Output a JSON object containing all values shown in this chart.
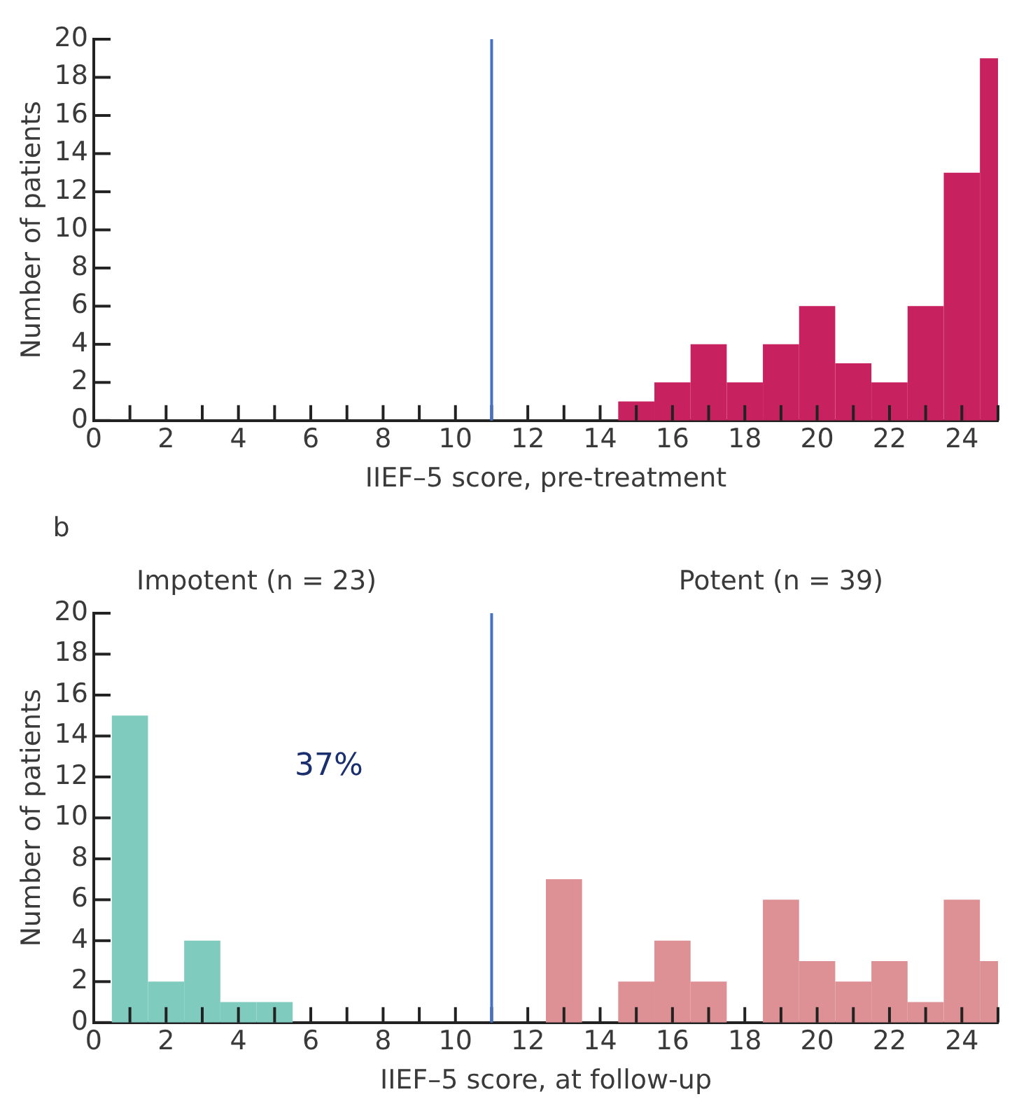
{
  "chart_data": [
    {
      "type": "histogram",
      "xlabel": "IIEF–5 score, pre-treatment",
      "ylabel": "Number of patients",
      "bins": [
        14.5,
        15.5,
        16.5,
        17.5,
        18.5,
        19.5,
        20.5,
        21.5,
        22.5,
        23.5,
        24.5,
        25
      ],
      "values": [
        1,
        2,
        4,
        2,
        4,
        6,
        3,
        2,
        6,
        13,
        19
      ],
      "color": "#c8215f",
      "xlim": [
        0,
        25
      ],
      "xticks": [
        0,
        {
          "value": 1,
          "label": null
        },
        2,
        {
          "value": 3,
          "label": null
        },
        4,
        {
          "value": 5,
          "label": null
        },
        6,
        {
          "value": 7,
          "label": null
        },
        8,
        {
          "value": 9,
          "label": null
        },
        10,
        {
          "value": 11,
          "label": null
        },
        12,
        {
          "value": 13,
          "label": null
        },
        14,
        {
          "value": 15,
          "label": null
        },
        16,
        {
          "value": 17,
          "label": null
        },
        18,
        {
          "value": 19,
          "label": null
        },
        20,
        {
          "value": 21,
          "label": null
        },
        22,
        {
          "value": 23,
          "label": null
        },
        24,
        {
          "value": 25,
          "label": null
        }
      ],
      "ylim": [
        0,
        20
      ],
      "yticks": [
        0,
        2,
        4,
        6,
        8,
        10,
        12,
        14,
        16,
        18,
        20
      ],
      "grid": false,
      "ref_lines": [
        {
          "axis": "x",
          "value": 11,
          "color": "#4472c4"
        }
      ]
    },
    {
      "type": "histogram",
      "xlabel": "IIEF–5 score, at follow-up",
      "ylabel": "Number of patients",
      "bins": [
        0.5,
        1.5,
        2.5,
        3.5,
        4.5,
        5.5,
        12.5,
        13.5,
        14.5,
        15.5,
        16.5,
        17.5,
        18.5,
        19.5,
        20.5,
        21.5,
        22.5,
        23.5,
        24.5,
        25
      ],
      "series": [
        {
          "color": "#7fccbf",
          "values": [
            15,
            2,
            4,
            1,
            1,
            0,
            null,
            null,
            null,
            null,
            null,
            null,
            null,
            null,
            null,
            null,
            null,
            null,
            null
          ]
        },
        {
          "color": "#de9194",
          "values": [
            null,
            null,
            null,
            null,
            null,
            null,
            7,
            0,
            2,
            4,
            2,
            0,
            6,
            3,
            2,
            3,
            1,
            6,
            3
          ]
        }
      ],
      "xlim": [
        0,
        25
      ],
      "xticks": [
        0,
        {
          "value": 1,
          "label": null
        },
        2,
        {
          "value": 3,
          "label": null
        },
        4,
        {
          "value": 5,
          "label": null
        },
        6,
        {
          "value": 7,
          "label": null
        },
        8,
        {
          "value": 9,
          "label": null
        },
        10,
        {
          "value": 11,
          "label": null
        },
        12,
        {
          "value": 13,
          "label": null
        },
        14,
        {
          "value": 15,
          "label": null
        },
        16,
        {
          "value": 17,
          "label": null
        },
        18,
        {
          "value": 19,
          "label": null
        },
        20,
        {
          "value": 21,
          "label": null
        },
        22,
        {
          "value": 23,
          "label": null
        },
        24,
        {
          "value": 25,
          "label": null
        }
      ],
      "ylim": [
        0,
        20
      ],
      "yticks": [
        0,
        2,
        4,
        6,
        8,
        10,
        12,
        14,
        16,
        18,
        20
      ],
      "grid": false,
      "ref_lines": [
        {
          "axis": "x",
          "value": 11,
          "color": "#4472c4"
        }
      ],
      "annotations": [
        "b",
        "Impotent (n = 23)",
        "Potent (n = 39)",
        "37%"
      ]
    }
  ]
}
